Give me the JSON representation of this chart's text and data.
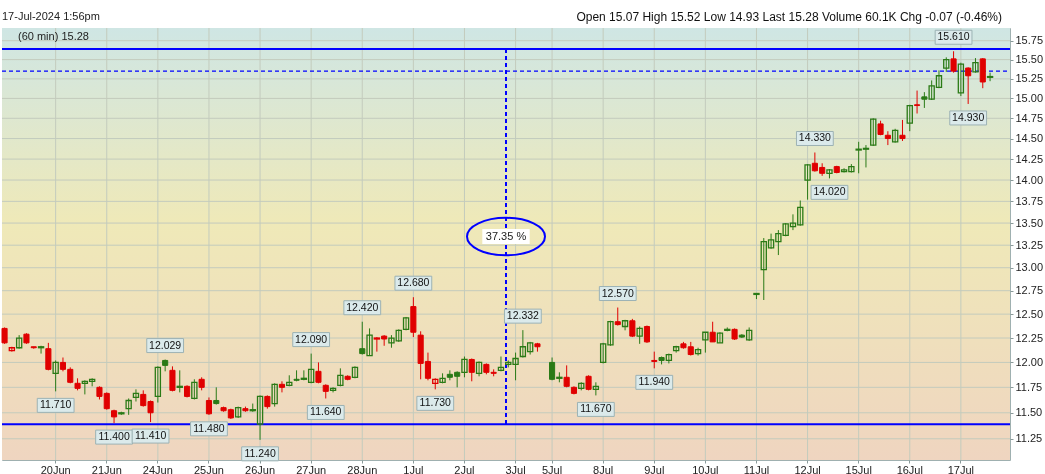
{
  "chart_data": {
    "type": "candlestick",
    "subtitle": "17-Jul-2024 1:56pm",
    "annotations": [
      "Open 15.07 High 15.52 Low 14.93 Last 15.28 Volume 60.1K Chg -0.07 (-0.46%)",
      {
        "text": "11.710",
        "x": "20Jun",
        "y": 11.71
      },
      {
        "text": "11.400",
        "y": 11.4
      },
      {
        "text": "11.410",
        "y": 11.41
      },
      {
        "text": "12.029",
        "y": 12.029
      },
      {
        "text": "11.480",
        "x": "25Jun",
        "y": 11.48
      },
      {
        "text": "11.240",
        "x": "26Jun",
        "y": 11.24
      },
      {
        "text": "12.090",
        "x": "27Jun",
        "y": 12.09
      },
      {
        "text": "11.640",
        "y": 11.64
      },
      {
        "text": "12.420",
        "x": "28Jun",
        "y": 12.42
      },
      {
        "text": "12.680",
        "x": "1Jul",
        "y": 12.68
      },
      {
        "text": "11.730",
        "y": 11.73
      },
      {
        "text": "12.332",
        "y": 12.332
      },
      {
        "text": "11.670",
        "y": 11.67
      },
      {
        "text": "12.570",
        "y": 12.57
      },
      {
        "text": "11.940",
        "x": "9Jul",
        "y": 11.94
      },
      {
        "text": "14.330",
        "y": 14.33
      },
      {
        "text": "14.020",
        "y": 14.02
      },
      {
        "text": "15.610",
        "y": 15.61
      },
      {
        "text": "14.930",
        "y": 14.93
      },
      "37.35 %"
    ],
    "categories": [
      null,
      null,
      null,
      null,
      null,
      null,
      null,
      "20Jun",
      null,
      null,
      null,
      null,
      null,
      null,
      "21Jun",
      null,
      null,
      null,
      null,
      null,
      null,
      "24Jun",
      null,
      null,
      null,
      null,
      null,
      null,
      "25Jun",
      null,
      null,
      null,
      null,
      null,
      null,
      "26Jun",
      null,
      null,
      null,
      null,
      null,
      null,
      "27Jun",
      null,
      null,
      null,
      null,
      null,
      null,
      "28Jun",
      null,
      null,
      null,
      null,
      null,
      null,
      "1Jul",
      null,
      null,
      null,
      null,
      null,
      null,
      "2Jul",
      null,
      null,
      null,
      null,
      null,
      null,
      "3Jul",
      null,
      null,
      null,
      null,
      "5Jul",
      null,
      null,
      null,
      null,
      null,
      null,
      "8Jul",
      null,
      null,
      null,
      null,
      null,
      null,
      "9Jul",
      null,
      null,
      null,
      null,
      null,
      null,
      "10Jul",
      null,
      null,
      null,
      null,
      null,
      null,
      "11Jul",
      null,
      null,
      null,
      null,
      null,
      null,
      "12Jul",
      null,
      null,
      null,
      null,
      null,
      null,
      "15Jul",
      null,
      null,
      null,
      null,
      null,
      null,
      "16Jul",
      null,
      null,
      null,
      null,
      null,
      null,
      "17Jul",
      null,
      null,
      null,
      null,
      null,
      null
    ],
    "series": [
      {
        "name": "(60 min) 15.28",
        "ohlc": [
          [
            12.35,
            12.36,
            12.19,
            12.2
          ],
          [
            12.12,
            12.16,
            12.11,
            12.15
          ],
          [
            12.15,
            12.28,
            12.14,
            12.25
          ],
          [
            12.29,
            12.3,
            12.19,
            12.2
          ],
          [
            12.16,
            12.16,
            12.14,
            12.15
          ],
          [
            12.15,
            12.17,
            12.09,
            12.16
          ],
          [
            12.14,
            12.2,
            11.92,
            11.93
          ],
          [
            11.89,
            12.02,
            11.71,
            12.0
          ],
          [
            12.0,
            12.05,
            11.91,
            11.93
          ],
          [
            11.93,
            11.95,
            11.79,
            11.8
          ],
          [
            11.79,
            11.84,
            11.72,
            11.74
          ],
          [
            11.79,
            11.82,
            11.68,
            11.81
          ],
          [
            11.81,
            11.84,
            11.76,
            11.83
          ],
          [
            11.75,
            11.76,
            11.63,
            11.66
          ],
          [
            11.69,
            11.7,
            11.53,
            11.54
          ],
          [
            11.52,
            11.53,
            11.4,
            11.46
          ],
          [
            11.49,
            11.51,
            11.48,
            11.5
          ],
          [
            11.54,
            11.64,
            11.48,
            11.62
          ],
          [
            11.65,
            11.73,
            11.61,
            11.69
          ],
          [
            11.68,
            11.72,
            11.56,
            11.57
          ],
          [
            11.61,
            11.62,
            11.41,
            11.5
          ],
          [
            11.66,
            11.96,
            11.6,
            11.95
          ],
          [
            12.02,
            12.029,
            11.91,
            11.97
          ],
          [
            11.92,
            11.96,
            11.71,
            11.72
          ],
          [
            11.75,
            11.92,
            11.7,
            11.76
          ],
          [
            11.76,
            11.77,
            11.65,
            11.66
          ],
          [
            11.64,
            11.83,
            11.63,
            11.8
          ],
          [
            11.83,
            11.85,
            11.72,
            11.75
          ],
          [
            11.62,
            11.65,
            11.48,
            11.49
          ],
          [
            11.62,
            11.75,
            11.58,
            11.59
          ],
          [
            11.55,
            11.56,
            11.51,
            11.52
          ],
          [
            11.53,
            11.54,
            11.44,
            11.45
          ],
          [
            11.46,
            11.56,
            11.45,
            11.55
          ],
          [
            11.54,
            11.56,
            11.51,
            11.52
          ],
          [
            11.52,
            11.59,
            11.51,
            11.53
          ],
          [
            11.39,
            11.67,
            11.24,
            11.66
          ],
          [
            11.66,
            11.67,
            11.54,
            11.56
          ],
          [
            11.59,
            11.79,
            11.56,
            11.78
          ],
          [
            11.78,
            11.81,
            11.7,
            11.75
          ],
          [
            11.77,
            11.87,
            11.76,
            11.8
          ],
          [
            11.83,
            11.92,
            11.81,
            11.82
          ],
          [
            11.83,
            11.92,
            11.82,
            11.84
          ],
          [
            11.8,
            12.09,
            11.79,
            11.93
          ],
          [
            11.91,
            12.0,
            11.79,
            11.8
          ],
          [
            11.77,
            11.78,
            11.64,
            11.71
          ],
          [
            11.72,
            11.75,
            11.7,
            11.74
          ],
          [
            11.77,
            11.94,
            11.76,
            11.87
          ],
          [
            11.86,
            11.87,
            11.82,
            11.83
          ],
          [
            11.85,
            11.96,
            11.84,
            11.95
          ],
          [
            12.14,
            12.42,
            12.08,
            12.09
          ],
          [
            12.07,
            12.35,
            12.07,
            12.28
          ],
          [
            12.24,
            12.26,
            12.11,
            12.25
          ],
          [
            12.27,
            12.28,
            12.17,
            12.24
          ],
          [
            12.2,
            12.28,
            12.15,
            12.25
          ],
          [
            12.22,
            12.34,
            12.21,
            12.33
          ],
          [
            12.34,
            12.47,
            12.33,
            12.46
          ],
          [
            12.58,
            12.68,
            12.26,
            12.31
          ],
          [
            12.28,
            12.32,
            11.83,
            11.99
          ],
          [
            12.01,
            12.1,
            11.82,
            11.84
          ],
          [
            11.79,
            11.84,
            11.73,
            11.83
          ],
          [
            11.8,
            11.89,
            11.79,
            11.84
          ],
          [
            11.88,
            11.92,
            11.82,
            11.85
          ],
          [
            11.9,
            11.91,
            11.75,
            11.86
          ],
          [
            11.9,
            12.06,
            11.85,
            12.03
          ],
          [
            12.03,
            12.04,
            11.81,
            11.9
          ],
          [
            11.89,
            12.01,
            11.86,
            12.0
          ],
          [
            11.98,
            11.99,
            11.88,
            11.9
          ],
          [
            11.9,
            11.93,
            11.86,
            11.89
          ],
          [
            11.92,
            12.06,
            11.91,
            11.95
          ],
          [
            11.98,
            12.02,
            11.95,
            12.0
          ],
          [
            11.98,
            12.1,
            11.82,
            12.04
          ],
          [
            12.06,
            12.332,
            12.05,
            12.16
          ],
          [
            12.11,
            12.21,
            12.08,
            12.2
          ],
          [
            12.19,
            12.2,
            12.11,
            12.16
          ],
          null,
          [
            12.0,
            12.05,
            11.82,
            11.83
          ],
          [
            11.84,
            11.9,
            11.8,
            11.85
          ],
          [
            11.85,
            11.97,
            11.75,
            11.76
          ],
          [
            11.75,
            11.76,
            11.68,
            11.69
          ],
          [
            11.74,
            11.8,
            11.72,
            11.79
          ],
          [
            11.86,
            11.87,
            11.72,
            11.73
          ],
          [
            11.73,
            11.8,
            11.67,
            11.76
          ],
          [
            12.0,
            12.2,
            11.99,
            12.19
          ],
          [
            12.18,
            12.43,
            12.17,
            12.42
          ],
          [
            12.42,
            12.57,
            12.38,
            12.39
          ],
          [
            12.37,
            12.44,
            12.33,
            12.43
          ],
          [
            12.43,
            12.45,
            12.26,
            12.27
          ],
          [
            12.27,
            12.37,
            12.19,
            12.35
          ],
          [
            12.37,
            12.38,
            12.2,
            12.21
          ],
          [
            12.02,
            12.11,
            11.94,
            12.01
          ],
          [
            12.05,
            12.06,
            11.98,
            12.02
          ],
          [
            12.02,
            12.09,
            11.99,
            12.08
          ],
          [
            12.12,
            12.17,
            12.1,
            12.16
          ],
          [
            12.19,
            12.21,
            12.14,
            12.15
          ],
          [
            12.16,
            12.21,
            12.07,
            12.08
          ],
          [
            12.09,
            12.15,
            12.07,
            12.13
          ],
          [
            12.23,
            12.31,
            12.1,
            12.31
          ],
          [
            12.31,
            12.42,
            12.21,
            12.21
          ],
          [
            12.2,
            12.31,
            12.2,
            12.3
          ],
          [
            12.33,
            12.36,
            12.32,
            12.34
          ],
          [
            12.34,
            12.35,
            12.23,
            12.24
          ],
          [
            12.28,
            12.29,
            12.25,
            12.26
          ],
          [
            12.23,
            12.36,
            12.22,
            12.33
          ],
          [
            12.71,
            12.72,
            12.66,
            12.72
          ],
          [
            12.98,
            13.33,
            12.65,
            13.29
          ],
          [
            13.22,
            13.38,
            13.21,
            13.31
          ],
          [
            13.29,
            13.42,
            13.14,
            13.38
          ],
          [
            13.36,
            13.5,
            13.35,
            13.49
          ],
          [
            13.46,
            13.6,
            13.42,
            13.5
          ],
          [
            13.48,
            13.76,
            13.47,
            13.68
          ],
          [
            14.0,
            14.19,
            13.77,
            14.18
          ],
          [
            14.2,
            14.33,
            14.1,
            14.11
          ],
          [
            14.15,
            14.2,
            14.05,
            14.08
          ],
          [
            14.08,
            14.13,
            14.02,
            14.12
          ],
          [
            14.16,
            14.17,
            14.08,
            14.09
          ],
          [
            14.1,
            14.14,
            14.09,
            14.12
          ],
          [
            14.1,
            14.19,
            14.09,
            14.16
          ],
          [
            14.36,
            14.46,
            14.08,
            14.37
          ],
          [
            14.37,
            14.42,
            14.15,
            14.38
          ],
          [
            14.42,
            14.75,
            14.41,
            14.74
          ],
          [
            14.68,
            14.72,
            14.54,
            14.55
          ],
          [
            14.54,
            14.59,
            14.42,
            14.5
          ],
          [
            14.46,
            14.62,
            14.45,
            14.6
          ],
          [
            14.54,
            14.73,
            14.47,
            14.5
          ],
          [
            14.69,
            14.92,
            14.59,
            14.91
          ],
          [
            14.92,
            15.1,
            14.81,
            14.91
          ],
          [
            15.02,
            15.08,
            14.88,
            14.99
          ],
          [
            14.99,
            15.23,
            14.98,
            15.16
          ],
          [
            15.14,
            15.36,
            15.13,
            15.29
          ],
          [
            15.39,
            15.53,
            15.34,
            15.5
          ],
          [
            15.51,
            15.61,
            15.33,
            15.35
          ],
          [
            15.07,
            15.46,
            15.03,
            15.44
          ],
          [
            15.39,
            15.4,
            14.93,
            15.29
          ],
          [
            15.34,
            15.52,
            15.33,
            15.46
          ],
          [
            15.51,
            15.52,
            15.13,
            15.21
          ],
          [
            15.27,
            15.33,
            15.22,
            15.28
          ],
          null,
          null
        ],
        "colors": [
          "#e00000",
          "#e00000",
          "#2a7a16",
          "#e00000",
          "#e00000",
          "#2a7a16",
          "#e00000",
          "#2a7a16",
          "#e00000",
          "#e00000",
          "#e00000",
          "#2a7a16",
          "#2a7a16",
          "#e00000",
          "#e00000",
          "#e00000",
          "#2a7a16",
          "#2a7a16",
          "#2a7a16",
          "#e00000",
          "#e00000",
          "#2a7a16",
          "#2a7a16",
          "#e00000",
          "#2a7a16",
          "#e00000",
          "#2a7a16",
          "#e00000",
          "#e00000",
          "#2a7a16",
          "#e00000",
          "#e00000",
          "#2a7a16",
          "#e00000",
          "#2a7a16",
          "#2a7a16",
          "#e00000",
          "#2a7a16",
          "#e00000",
          "#2a7a16",
          "#2a7a16",
          "#2a7a16",
          "#2a7a16",
          "#e00000",
          "#e00000",
          "#2a7a16",
          "#2a7a16",
          "#e00000",
          "#2a7a16",
          "#2a7a16",
          "#2a7a16",
          "#e00000",
          "#e00000",
          "#2a7a16",
          "#2a7a16",
          "#2a7a16",
          "#e00000",
          "#e00000",
          "#e00000",
          "#e00000",
          "#2a7a16",
          "#2a7a16",
          "#2a7a16",
          "#2a7a16",
          "#e00000",
          "#2a7a16",
          "#e00000",
          "#e00000",
          "#2a7a16",
          "#2a7a16",
          "#2a7a16",
          "#2a7a16",
          "#2a7a16",
          "#e00000",
          null,
          "#2a7a16",
          "#2a7a16",
          "#e00000",
          "#e00000",
          "#2a7a16",
          "#e00000",
          "#2a7a16",
          "#2a7a16",
          "#2a7a16",
          "#e00000",
          "#2a7a16",
          "#e00000",
          "#2a7a16",
          "#e00000",
          "#e00000",
          "#2a7a16",
          "#2a7a16",
          "#2a7a16",
          "#e00000",
          "#e00000",
          "#2a7a16",
          "#2a7a16",
          "#e00000",
          "#2a7a16",
          "#2a7a16",
          "#e00000",
          "#2a7a16",
          "#2a7a16",
          "#2a7a16",
          "#2a7a16",
          "#2a7a16",
          "#2a7a16",
          "#2a7a16",
          "#2a7a16",
          "#2a7a16",
          "#2a7a16",
          "#e00000",
          "#e00000",
          "#2a7a16",
          "#e00000",
          "#2a7a16",
          "#2a7a16",
          "#2a7a16",
          "#2a7a16",
          "#2a7a16",
          "#e00000",
          "#e00000",
          "#2a7a16",
          "#e00000",
          "#2a7a16",
          "#e00000",
          "#2a7a16",
          "#2a7a16",
          "#2a7a16",
          "#2a7a16",
          "#e00000",
          "#2a7a16",
          "#e00000",
          "#2a7a16",
          "#e00000",
          "#2a7a16",
          null,
          null
        ]
      }
    ],
    "ylim": [
      11.05,
      15.92
    ],
    "yticks": [
      11.25,
      {
        "value": 11.5,
        "label": "11.50"
      },
      11.75,
      {
        "value": 12,
        "label": "12.00"
      },
      12.25,
      {
        "value": 12.5,
        "label": "12.50"
      },
      12.75,
      {
        "value": 13,
        "label": "13.00"
      },
      13.25,
      {
        "value": 13.5,
        "label": "13.50"
      },
      13.75,
      {
        "value": 14,
        "label": "14.00"
      },
      14.25,
      {
        "value": 14.5,
        "label": "14.50"
      },
      14.75,
      {
        "value": 15,
        "label": "15.00"
      },
      15.25,
      {
        "value": 15.5,
        "label": "15.50"
      },
      15.75
    ],
    "log": true,
    "grid": true,
    "legend": "top left",
    "ref_lines": [
      {
        "axis": "y",
        "value": 15.64,
        "color": "#0000ff"
      },
      {
        "axis": "y",
        "value": 11.39,
        "color": "#0000ff"
      },
      {
        "axis": "y",
        "value": 15.35,
        "color": "#0000ff",
        "line_style": "dashed"
      }
    ]
  }
}
